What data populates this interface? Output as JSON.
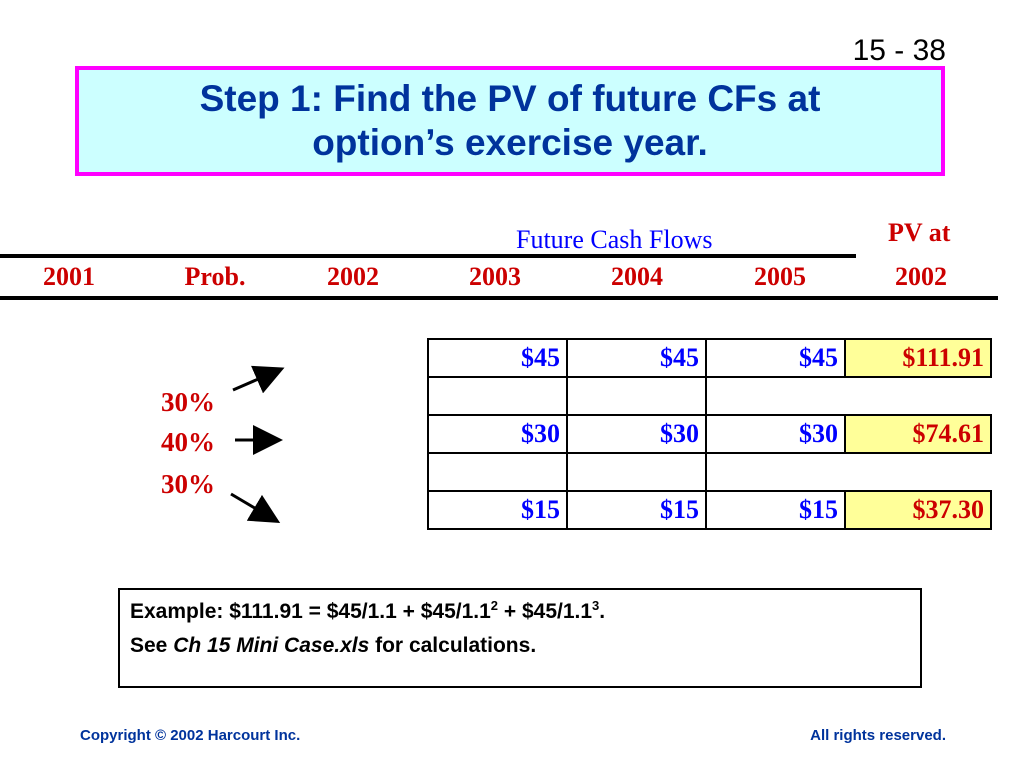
{
  "slide_number": "15 - 38",
  "title": {
    "line1": "Step 1: Find the PV of future CFs at",
    "line2": "option’s exercise year."
  },
  "table_header": {
    "future_cash_flows": "Future Cash Flows",
    "pv_at": "PV at",
    "columns": [
      "2001",
      "Prob.",
      "2002",
      "2003",
      "2004",
      "2005",
      "2002"
    ]
  },
  "probabilities": [
    "30%",
    "40%",
    "30%"
  ],
  "cash_flow_rows": [
    {
      "y2003": "$45",
      "y2004": "$45",
      "y2005": "$45",
      "pv": "$111.91"
    },
    {
      "y2003": "$30",
      "y2004": "$30",
      "y2005": "$30",
      "pv": "$74.61"
    },
    {
      "y2003": "$15",
      "y2004": "$15",
      "y2005": "$15",
      "pv": "$37.30"
    }
  ],
  "example": {
    "line1_prefix": "Example: $111.91 = $45/1.1 + $45/1.1",
    "exp2": "2",
    "mid": " + $45/1.1",
    "exp3": "3",
    "end": ".",
    "line2_prefix": "See ",
    "line2_italic": "Ch 15 Mini Case.xls",
    "line2_suffix": " for calculations."
  },
  "footer": {
    "copyright": "Copyright © 2002 Harcourt Inc.",
    "rights": "All rights reserved."
  },
  "colors": {
    "title_text": "#00339c",
    "title_bg": "#ccffff",
    "title_border": "#ff00ff",
    "header_red": "#cc0000",
    "value_blue": "#0000ff",
    "pv_highlight": "#ffff99"
  }
}
